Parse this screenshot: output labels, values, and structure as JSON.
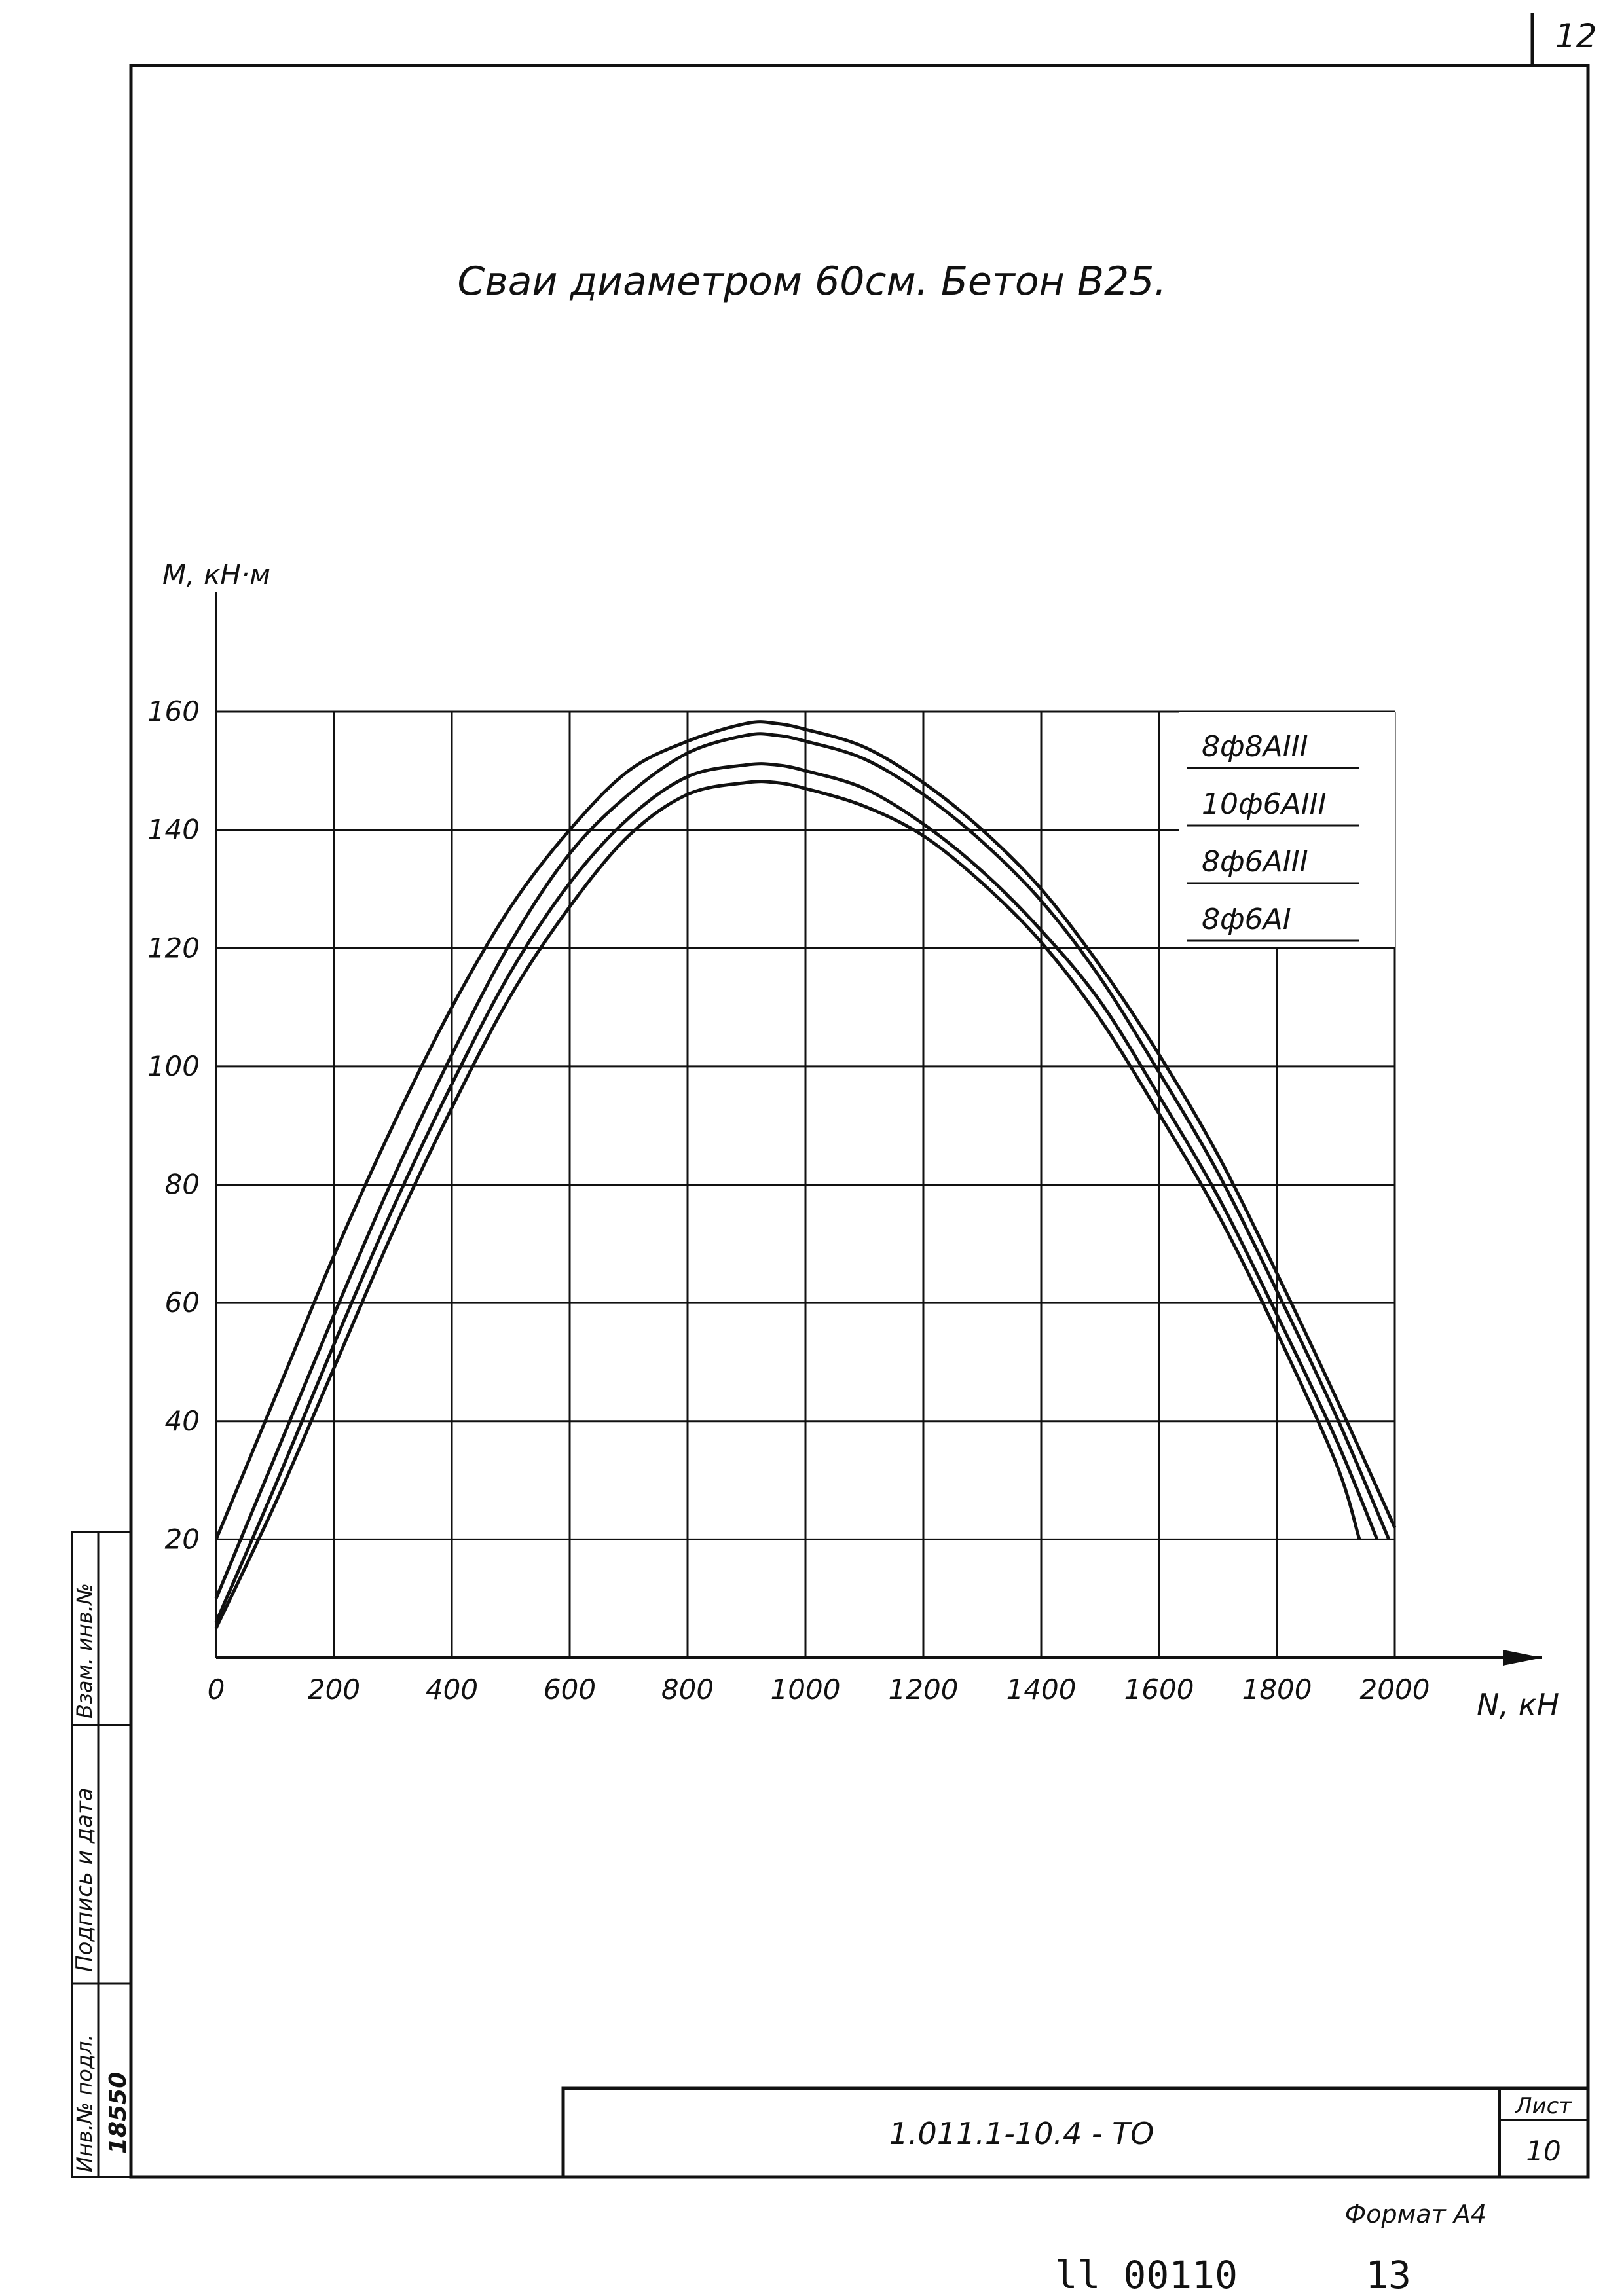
{
  "sheet": {
    "page_number_top": "12",
    "sheet_label": "Лист",
    "sheet_number": "10",
    "doc_code": "1.011.1-10.4 -   ТО",
    "format_label": "Формат А4",
    "bottom_stamp_left": "ll 00110",
    "bottom_stamp_right": "13"
  },
  "side_stamp": {
    "col1_label": "Инв.№ подл.",
    "col1_value": "18550",
    "col2_label": "Подпись и дата",
    "col3_label": "Взам. инв.№"
  },
  "chart_data": {
    "type": "line",
    "title": "Сваи диаметром 60см. Бетон В25.",
    "xlabel": "N, кН",
    "ylabel": "М, кН·м",
    "xlim": [
      0,
      2000
    ],
    "ylim": [
      0,
      160
    ],
    "x_ticks": [
      "0",
      "200",
      "400",
      "600",
      "800",
      "1000",
      "1200",
      "1400",
      "1600",
      "1800",
      "2000"
    ],
    "y_ticks": [
      "20",
      "40",
      "60",
      "80",
      "100",
      "120",
      "140",
      "160"
    ],
    "grid": true,
    "legend_position": "top-right",
    "series": [
      {
        "name": "8ф8АIII",
        "x": [
          0,
          100,
          200,
          300,
          400,
          500,
          600,
          700,
          800,
          900,
          950,
          1000,
          1100,
          1200,
          1300,
          1400,
          1500,
          1600,
          1700,
          1800,
          1900,
          2000
        ],
        "y": [
          20,
          44,
          68,
          90,
          110,
          127,
          140,
          150,
          155,
          158,
          158,
          157,
          154,
          148,
          140,
          130,
          117,
          102,
          85,
          65,
          44,
          22
        ]
      },
      {
        "name": "10ф6АIII",
        "x": [
          0,
          100,
          200,
          300,
          400,
          500,
          600,
          700,
          800,
          900,
          950,
          1000,
          1100,
          1200,
          1300,
          1400,
          1500,
          1600,
          1700,
          1800,
          1900,
          1990
        ],
        "y": [
          10,
          34,
          58,
          81,
          102,
          121,
          136,
          146,
          153,
          156,
          156,
          155,
          152,
          146,
          138,
          128,
          115,
          99,
          82,
          62,
          41,
          20
        ]
      },
      {
        "name": "8ф6АIII",
        "x": [
          0,
          100,
          200,
          300,
          400,
          500,
          600,
          700,
          800,
          900,
          950,
          1000,
          1100,
          1200,
          1300,
          1400,
          1500,
          1600,
          1700,
          1800,
          1900,
          1970
        ],
        "y": [
          6,
          29,
          53,
          76,
          97,
          116,
          131,
          142,
          149,
          151,
          151,
          150,
          147,
          141,
          133,
          123,
          111,
          95,
          78,
          58,
          37,
          20
        ]
      },
      {
        "name": "8ф6АI",
        "x": [
          0,
          100,
          200,
          300,
          400,
          500,
          600,
          700,
          800,
          900,
          950,
          1000,
          1100,
          1200,
          1300,
          1400,
          1500,
          1600,
          1700,
          1800,
          1900,
          1940
        ],
        "y": [
          5,
          26,
          49,
          72,
          93,
          112,
          127,
          139,
          146,
          148,
          148,
          147,
          144,
          139,
          131,
          121,
          108,
          92,
          75,
          55,
          33,
          20
        ]
      }
    ]
  }
}
